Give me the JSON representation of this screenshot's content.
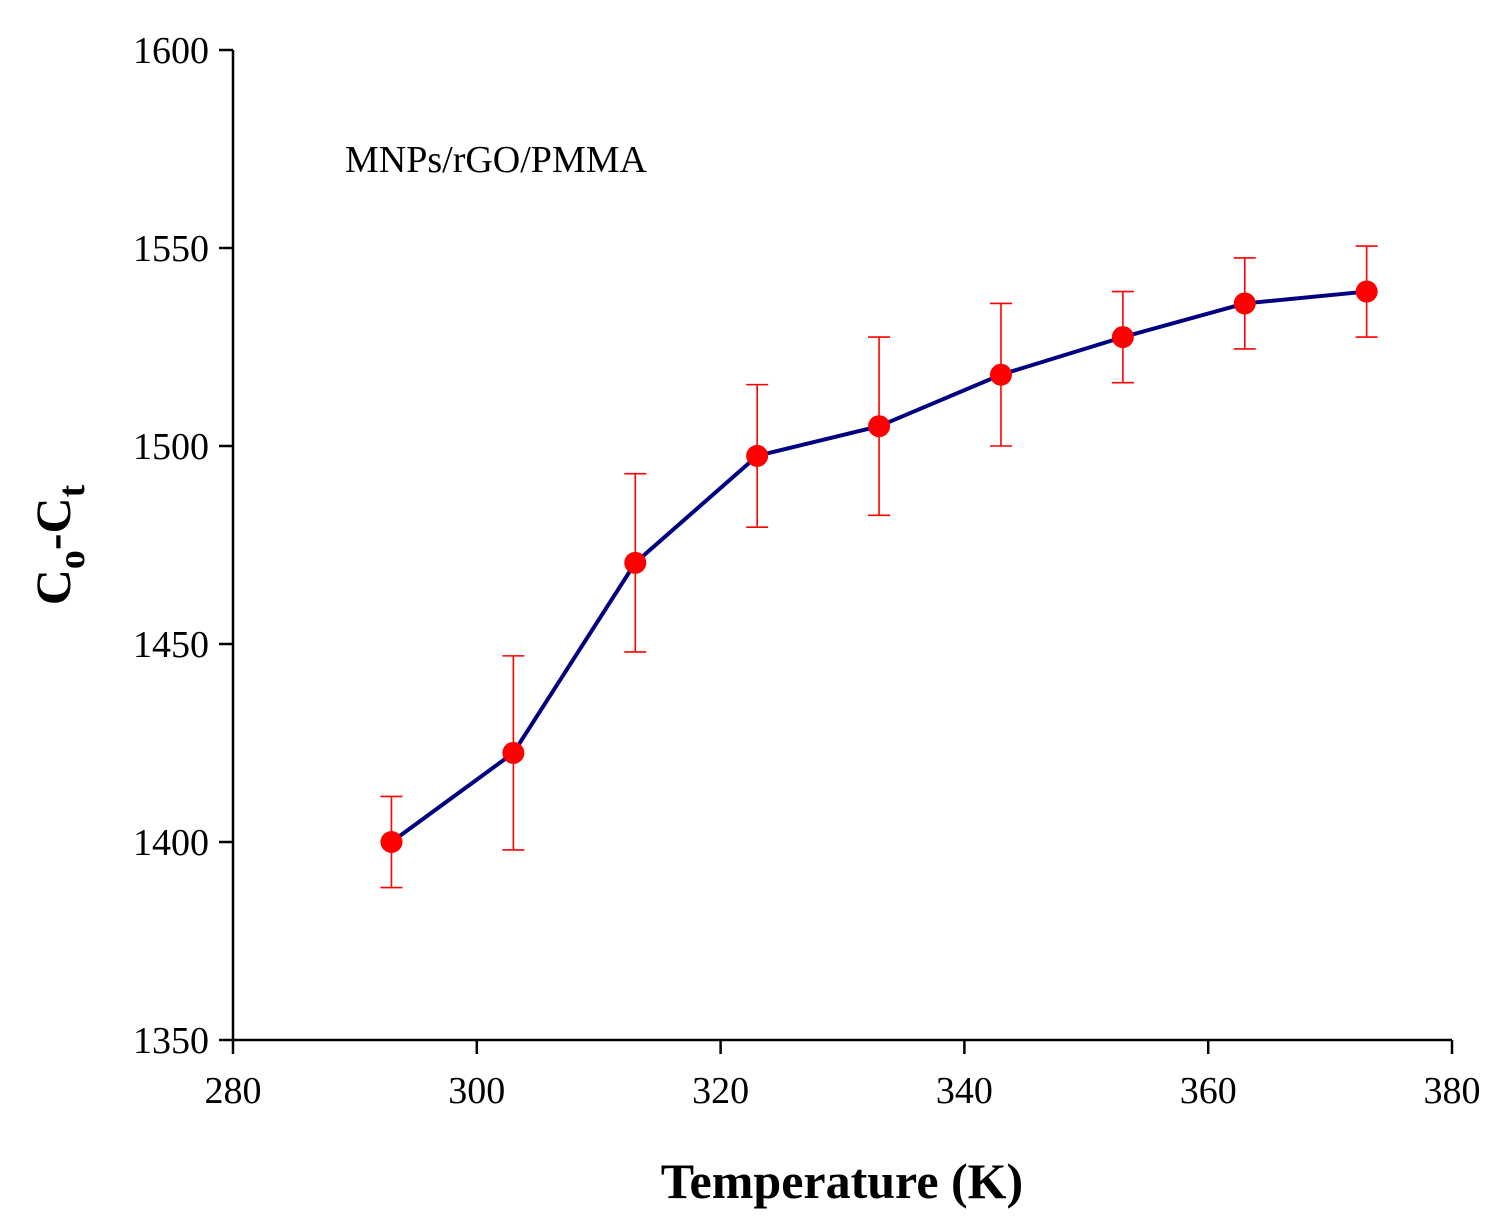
{
  "chart_data": {
    "type": "line",
    "title": "",
    "annotation": "MNPs/rGO/PMMA",
    "xlabel": "Temperature (K)",
    "ylabel": {
      "main1": "C",
      "sub1": "o",
      "dash": "-",
      "main2": "C",
      "sub2": "t"
    },
    "xlim": [
      280,
      380
    ],
    "ylim": [
      1350,
      1600
    ],
    "x_ticks": [
      280,
      300,
      320,
      340,
      360,
      380
    ],
    "y_ticks": [
      1350,
      1400,
      1450,
      1500,
      1550,
      1600
    ],
    "grid": false,
    "series": [
      {
        "name": "MNPs/rGO/PMMA",
        "line_color": "#000080",
        "marker_color": "#ff0000",
        "errorbar_color": "#ff0000",
        "x": [
          293,
          303,
          313,
          323,
          333,
          343,
          353,
          363,
          373
        ],
        "y": [
          1400,
          1422.5,
          1470.5,
          1497.5,
          1505,
          1518,
          1527.5,
          1536,
          1539
        ],
        "err_low": [
          11.5,
          24.5,
          22.5,
          18,
          22.5,
          18,
          11.5,
          11.5,
          11.5
        ],
        "err_high": [
          11.5,
          24.5,
          22.5,
          18,
          22.5,
          18,
          11.5,
          11.5,
          11.5
        ]
      }
    ]
  }
}
